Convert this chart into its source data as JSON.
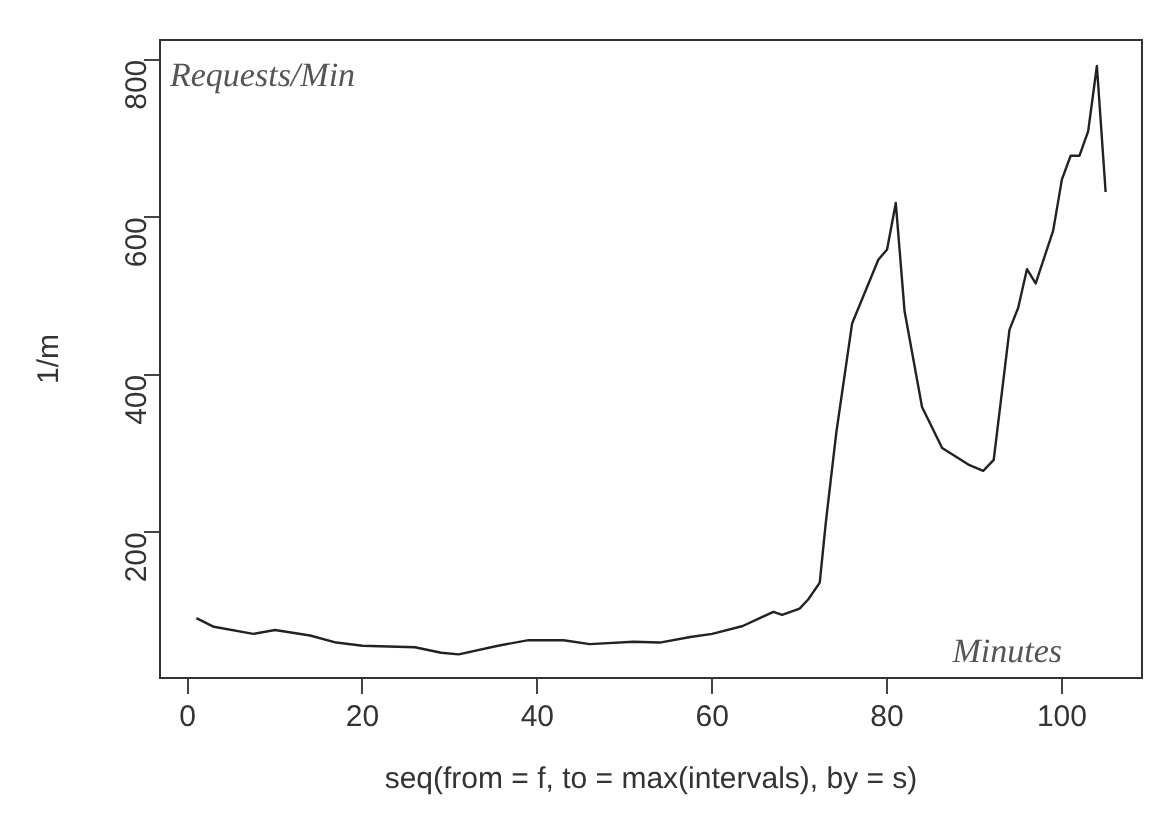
{
  "chart_data": {
    "type": "line",
    "xlabel": "seq(from = f, to = max(intervals), by = s)",
    "ylabel": "1/m",
    "annotations": [
      "Requests/Min",
      "Minutes"
    ],
    "xlim": [
      -3.16,
      109.16
    ],
    "xticks": [
      0,
      20,
      40,
      60,
      80,
      100
    ],
    "ylim": [
      15,
      825
    ],
    "yticks": [
      200,
      400,
      600,
      800
    ],
    "grid": false,
    "legend": false,
    "marker": "none",
    "line_style": "solid",
    "series": [
      {
        "color": "#222222",
        "x": [
          1,
          3,
          7.5,
          10,
          14,
          17,
          20,
          26,
          29,
          31,
          35.5,
          39,
          43,
          46,
          51,
          54,
          57.5,
          60,
          63.5,
          67,
          68,
          70,
          71,
          72.3,
          73,
          74.2,
          76,
          79,
          80,
          81,
          82,
          84,
          86.3,
          89.3,
          91,
          92.2,
          94,
          95,
          96,
          97,
          99,
          100,
          101,
          102,
          103,
          104,
          105
        ],
        "values": [
          91,
          80,
          71,
          76,
          69,
          60,
          56,
          54,
          47,
          45,
          56,
          63,
          63,
          58,
          61,
          60,
          67,
          71,
          81,
          99,
          95,
          103,
          115,
          136,
          213,
          327,
          465,
          546,
          559,
          618,
          481,
          359,
          307,
          286,
          278,
          292,
          457,
          485,
          534,
          516,
          583,
          648,
          678,
          678,
          709,
          792,
          632
        ]
      }
    ]
  }
}
